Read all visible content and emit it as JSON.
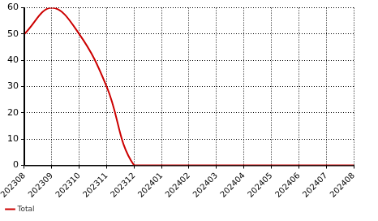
{
  "chart_data": {
    "type": "line",
    "categories": [
      "202308",
      "202309",
      "202310",
      "202311",
      "202312",
      "202401",
      "202402",
      "202403",
      "202404",
      "202405",
      "202406",
      "202407",
      "202408"
    ],
    "series": [
      {
        "name": "Total",
        "color": "#cc0000",
        "values": [
          50,
          60,
          50,
          30,
          0,
          0,
          0,
          0,
          0,
          0,
          0,
          0,
          0
        ],
        "marker": "none",
        "line_style": "solid"
      }
    ],
    "ylim": [
      0,
      60
    ],
    "yticks": [
      0,
      10,
      20,
      30,
      40,
      50,
      60
    ],
    "grid": true,
    "legend": "bottom-left"
  }
}
